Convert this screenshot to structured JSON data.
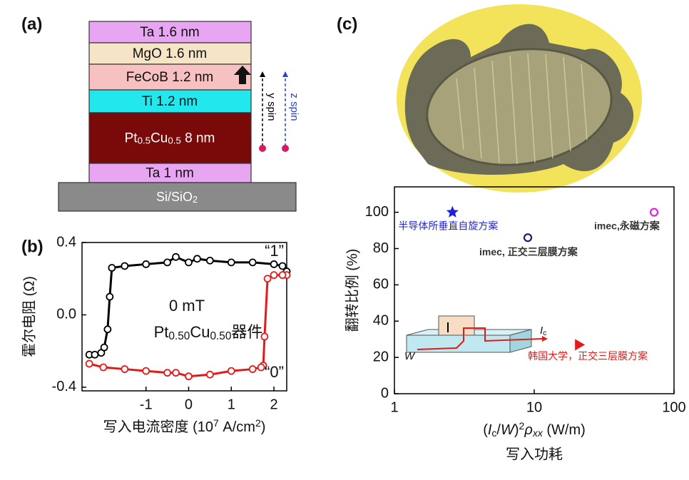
{
  "panel_labels": [
    "(a)",
    "(b)",
    "(c)"
  ],
  "diagram": {
    "layers": [
      {
        "label": [
          {
            "text": "Ta  1.6 nm"
          }
        ],
        "color": "#e8a6f2"
      },
      {
        "label": [
          {
            "text": "MgO  1.6 nm"
          }
        ],
        "color": "#f6e4c6"
      },
      {
        "label": [
          {
            "text": "FeCoB  1.2 nm"
          }
        ],
        "color": "#f7c1c1"
      },
      {
        "label": [
          {
            "text": "Ti   1.2 nm"
          }
        ],
        "color": "#22e8ee"
      },
      {
        "label": [
          {
            "text": "Pt"
          },
          {
            "text": "0.5",
            "sub": true
          },
          {
            "text": "Cu"
          },
          {
            "text": "0.5",
            "sub": true
          },
          {
            "text": "  8 nm"
          }
        ],
        "color": "#7a0a0a",
        "text_color": "#ffffff"
      },
      {
        "label": [
          {
            "text": "Ta  1 nm"
          }
        ],
        "color": "#e8a6f2"
      }
    ],
    "substrate": {
      "label": [
        {
          "text": "Si/SiO"
        },
        {
          "text": "2",
          "sub": true
        }
      ],
      "color": "#8a8a8a"
    },
    "spins": [
      {
        "label": "y spin",
        "color": "#000000"
      },
      {
        "label": "z spin",
        "color": "#2a3fd8"
      }
    ]
  },
  "chart_data": [
    {
      "type": "line",
      "ylabel": "霍尔电阻 (Ω)",
      "xlabel": [
        {
          "text": "写入电流密度 (10"
        },
        {
          "text": "7",
          "sup": true
        },
        {
          "text": " A/cm"
        },
        {
          "text": "2",
          "sup": true
        },
        {
          "text": ")"
        }
      ],
      "xlim": [
        -2.5,
        2.3
      ],
      "ylim": [
        -0.42,
        0.4
      ],
      "xticks": [
        -1,
        0,
        1,
        2
      ],
      "yticks": [
        0.4,
        {
          "value": 0,
          "label": "0.0"
        },
        -0.4
      ],
      "series": [
        {
          "color": "#000000",
          "x": [
            -2.33,
            -2.2,
            -2.05,
            -1.98,
            -1.9,
            -1.85,
            -1.8,
            -1.5,
            -1,
            -0.5,
            -0.3,
            0,
            0.2,
            0.5,
            1,
            1.5,
            2,
            2.2,
            2.3
          ],
          "values": [
            -0.22,
            -0.22,
            -0.21,
            -0.18,
            -0.08,
            0.1,
            0.26,
            0.27,
            0.28,
            0.29,
            0.32,
            0.29,
            0.31,
            0.3,
            0.29,
            0.29,
            0.28,
            0.27,
            0.24
          ]
        },
        {
          "color": "#e31a1a",
          "x": [
            2.3,
            2.2,
            2.0,
            1.85,
            1.78,
            1.75,
            1.7,
            1.5,
            1,
            0.5,
            0,
            -0.3,
            -0.5,
            -1,
            -1.5,
            -2,
            -2.33
          ],
          "values": [
            0.22,
            0.22,
            0.22,
            0.2,
            -0.12,
            -0.28,
            -0.29,
            -0.3,
            -0.31,
            -0.33,
            -0.34,
            -0.32,
            -0.32,
            -0.31,
            -0.3,
            -0.29,
            -0.27
          ]
        }
      ],
      "annotations": {
        "high": "“1”",
        "low": "“0”",
        "field": "0 mT",
        "device": [
          {
            "text": "Pt"
          },
          {
            "text": "0.50",
            "sub": true
          },
          {
            "text": "Cu"
          },
          {
            "text": "0.50",
            "sub": true
          },
          {
            "text": "器件"
          }
        ]
      }
    },
    {
      "type": "scatter",
      "xscale": "log",
      "ylabel": "翻转比例 (%)",
      "xlabel": [
        {
          "text": "("
        },
        {
          "text": "I",
          "italic": true
        },
        {
          "text": "c",
          "sub": true
        },
        {
          "text": "/"
        },
        {
          "text": "W",
          "italic": true
        },
        {
          "text": ")"
        },
        {
          "text": "2",
          "sup": true
        },
        {
          "text": "ρ",
          "italic": true
        },
        {
          "text": "xx",
          "sub": true,
          "italic": true
        },
        {
          "text": " (W/m)"
        }
      ],
      "xlabel2": "写入功耗",
      "xlim": [
        1,
        100
      ],
      "ylim": [
        0,
        114
      ],
      "xticks": [
        1,
        10,
        100
      ],
      "yticks": [
        0,
        20,
        40,
        60,
        80,
        100
      ],
      "series": [
        {
          "name": "半导体所垂直自旋方案",
          "color": "#1f1fe0",
          "marker": "star",
          "x": [
            2.6
          ],
          "values": [
            100
          ]
        },
        {
          "name": "imec, 正交三层膜方案",
          "color": "#14206e",
          "marker": "open-circle",
          "x": [
            9
          ],
          "values": [
            86
          ]
        },
        {
          "name": "imec,永磁方案",
          "color": "#e020e0",
          "marker": "open-circle",
          "x": [
            72
          ],
          "values": [
            100
          ]
        },
        {
          "name": "韩国大学，正交三层膜方案",
          "color": "#e31a1a",
          "marker": "triangle",
          "x": [
            21
          ],
          "values": [
            27
          ]
        }
      ],
      "inset": {
        "current": [
          {
            "text": "I",
            "italic": true
          },
          {
            "text": "c",
            "sub": true
          }
        ],
        "width": "W"
      }
    }
  ]
}
